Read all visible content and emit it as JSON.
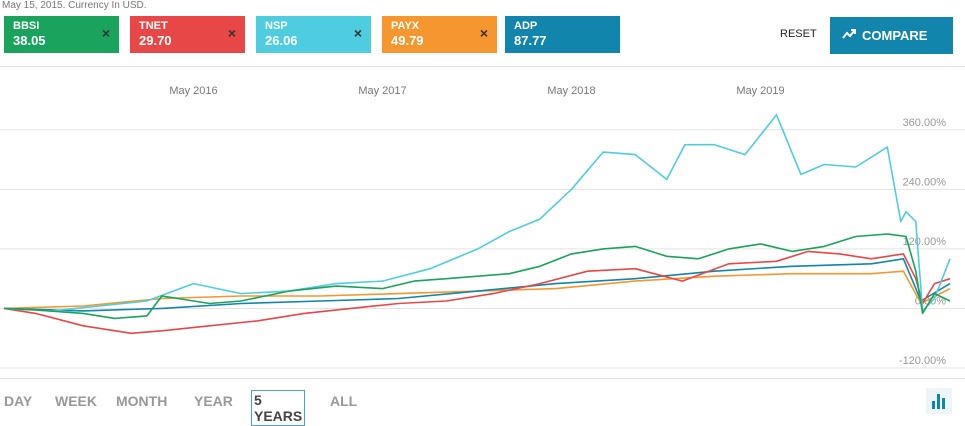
{
  "header": {
    "subtitle": "May 15, 2015. Currency In USD."
  },
  "chips": [
    {
      "symbol": "BBSI",
      "price": "38.05",
      "color": "#1aa35c",
      "close": "×"
    },
    {
      "symbol": "TNET",
      "price": "29.70",
      "color": "#e84747",
      "close": "×"
    },
    {
      "symbol": "NSP",
      "price": "26.06",
      "color": "#4fcde0",
      "close": "×"
    },
    {
      "symbol": "PAYX",
      "price": "49.79",
      "color": "#f5962e",
      "close": "×"
    },
    {
      "symbol": "ADP",
      "price": "87.77",
      "color": "#1185ab",
      "close": "×"
    }
  ],
  "actions": {
    "reset_label": "RESET",
    "compare_label": "COMPARE",
    "compare_icon": "trend-up-icon"
  },
  "range_tabs": {
    "items": [
      "DAY",
      "WEEK",
      "MONTH",
      "YEAR",
      "5 YEARS",
      "ALL"
    ],
    "active": "5 YEARS"
  },
  "chart_data": {
    "type": "line",
    "x_tick_labels": [
      "May 2016",
      "May 2017",
      "May 2018",
      "May 2019"
    ],
    "x_range": [
      "2015-05-15",
      "2020-05-15"
    ],
    "y_tick_labels": [
      "360.00%",
      "240.00%",
      "120.00%",
      "0.00%",
      "-120.00%"
    ],
    "ylim": [
      -120,
      420
    ],
    "grid": true,
    "series": [
      {
        "name": "BBSI",
        "color": "#1aa35c",
        "x": [
          "2015-05-15",
          "2015-07-15",
          "2015-10-15",
          "2015-12-15",
          "2016-02-15",
          "2016-03-15",
          "2016-06-15",
          "2016-08-15",
          "2016-11-15",
          "2017-02-15",
          "2017-05-15",
          "2017-07-15",
          "2017-09-15",
          "2017-11-15",
          "2018-01-15",
          "2018-03-15",
          "2018-05-15",
          "2018-07-15",
          "2018-09-15",
          "2018-11-15",
          "2019-01-15",
          "2019-03-15",
          "2019-05-15",
          "2019-07-15",
          "2019-09-15",
          "2019-11-15",
          "2020-01-15",
          "2020-02-20",
          "2020-03-10",
          "2020-03-23",
          "2020-04-15",
          "2020-05-15"
        ],
        "y": [
          0,
          -3,
          -10,
          -20,
          -15,
          25,
          10,
          15,
          35,
          45,
          40,
          55,
          60,
          65,
          70,
          85,
          110,
          120,
          125,
          105,
          100,
          120,
          130,
          115,
          125,
          145,
          150,
          145,
          75,
          -10,
          30,
          15
        ]
      },
      {
        "name": "TNET",
        "color": "#e84747",
        "x": [
          "2015-05-15",
          "2015-07-15",
          "2015-10-15",
          "2016-01-15",
          "2016-03-15",
          "2016-06-15",
          "2016-09-15",
          "2016-12-15",
          "2017-03-15",
          "2017-06-15",
          "2017-09-15",
          "2017-12-15",
          "2018-03-15",
          "2018-06-15",
          "2018-09-15",
          "2018-12-15",
          "2019-03-15",
          "2019-06-15",
          "2019-08-15",
          "2019-10-15",
          "2019-12-15",
          "2020-02-15",
          "2020-03-10",
          "2020-03-23",
          "2020-04-15",
          "2020-05-15"
        ],
        "y": [
          0,
          -10,
          -35,
          -50,
          -45,
          -35,
          -25,
          -10,
          0,
          10,
          15,
          30,
          50,
          75,
          80,
          55,
          90,
          95,
          115,
          110,
          100,
          110,
          60,
          10,
          50,
          60
        ]
      },
      {
        "name": "NSP",
        "color": "#4fcde0",
        "x": [
          "2015-05-15",
          "2015-08-15",
          "2015-11-15",
          "2016-02-15",
          "2016-05-15",
          "2016-08-15",
          "2016-11-15",
          "2017-02-15",
          "2017-05-15",
          "2017-08-15",
          "2017-11-15",
          "2018-01-15",
          "2018-03-15",
          "2018-05-15",
          "2018-07-15",
          "2018-09-15",
          "2018-11-15",
          "2018-12-20",
          "2019-02-15",
          "2019-04-15",
          "2019-06-15",
          "2019-08-01",
          "2019-09-15",
          "2019-11-15",
          "2020-01-15",
          "2020-02-10",
          "2020-02-20",
          "2020-03-10",
          "2020-03-23",
          "2020-04-15",
          "2020-05-15"
        ],
        "y": [
          0,
          -5,
          5,
          15,
          50,
          30,
          35,
          50,
          55,
          80,
          120,
          155,
          180,
          240,
          315,
          310,
          260,
          330,
          330,
          310,
          390,
          270,
          290,
          285,
          325,
          175,
          195,
          175,
          -5,
          20,
          100
        ]
      },
      {
        "name": "PAYX",
        "color": "#f5962e",
        "x": [
          "2015-05-15",
          "2015-10-15",
          "2016-03-15",
          "2016-08-15",
          "2017-01-15",
          "2017-06-15",
          "2017-11-15",
          "2018-04-15",
          "2018-09-15",
          "2019-02-15",
          "2019-07-15",
          "2019-12-15",
          "2020-02-15",
          "2020-03-20",
          "2020-05-15"
        ],
        "y": [
          0,
          5,
          20,
          25,
          25,
          30,
          35,
          40,
          55,
          65,
          70,
          70,
          75,
          10,
          40
        ]
      },
      {
        "name": "ADP",
        "color": "#1185ab",
        "x": [
          "2015-05-15",
          "2015-10-15",
          "2016-03-15",
          "2016-08-15",
          "2017-01-15",
          "2017-06-15",
          "2017-11-15",
          "2018-04-15",
          "2018-09-15",
          "2019-02-15",
          "2019-07-15",
          "2019-12-15",
          "2020-02-15",
          "2020-03-20",
          "2020-05-15"
        ],
        "y": [
          0,
          -5,
          0,
          10,
          15,
          20,
          35,
          50,
          60,
          75,
          85,
          90,
          100,
          15,
          50
        ]
      }
    ]
  }
}
